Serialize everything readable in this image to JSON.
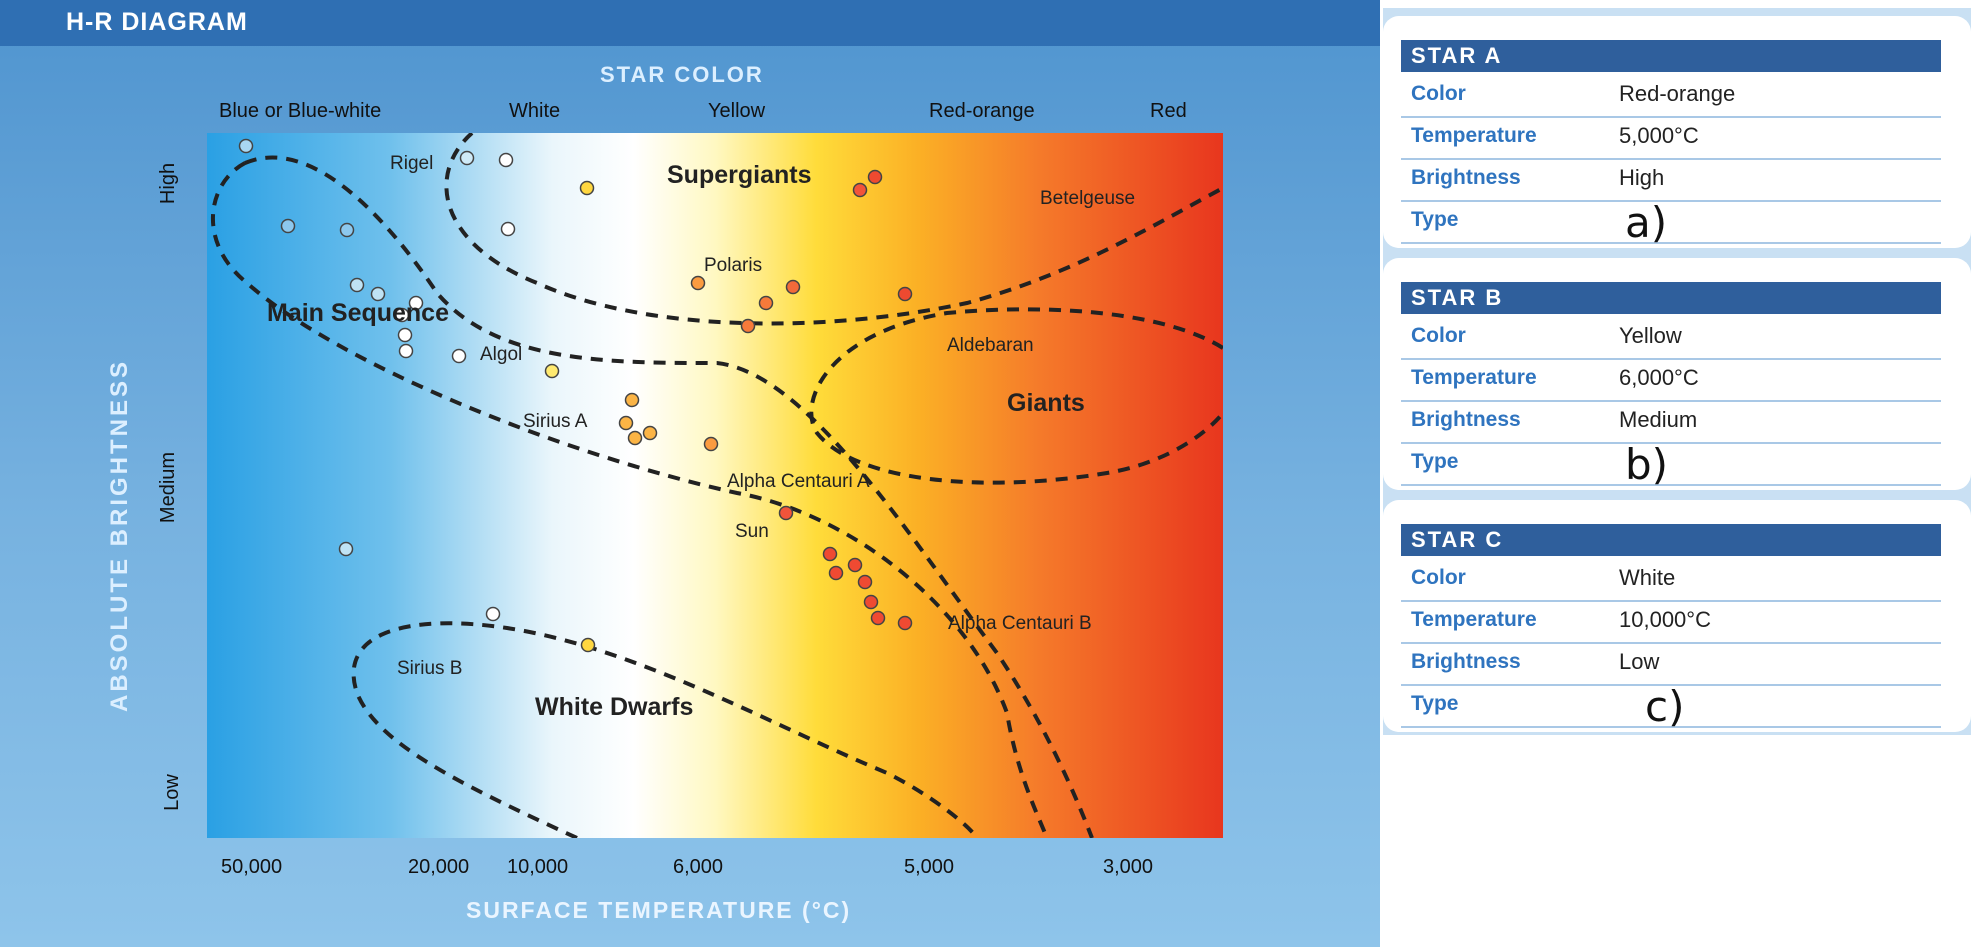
{
  "diagram": {
    "title": "H-R DIAGRAM",
    "star_color_heading": "STAR COLOR",
    "color_columns": [
      "Blue or Blue-white",
      "White",
      "Yellow",
      "Red-orange",
      "Red"
    ],
    "y_axis_title": "ABSOLUTE BRIGHTNESS",
    "y_ticks": [
      "High",
      "Medium",
      "Low"
    ],
    "x_axis_title": "SURFACE TEMPERATURE (°C)",
    "x_ticks": [
      "50,000",
      "20,000",
      "10,000",
      "6,000",
      "5,000",
      "3,000"
    ],
    "regions": {
      "supergiants": "Supergiants",
      "main_sequence": "Main Sequence",
      "giants": "Giants",
      "white_dwarfs": "White Dwarfs"
    },
    "star_names": {
      "rigel": "Rigel",
      "betelgeuse": "Betelgeuse",
      "polaris": "Polaris",
      "aldebaran": "Aldebaran",
      "algol": "Algol",
      "sirius_a": "Sirius A",
      "alpha_centauri_a": "Alpha Centauri A",
      "sun": "Sun",
      "alpha_centauri_b": "Alpha Centauri B",
      "sirius_b": "Sirius B"
    }
  },
  "cards": [
    {
      "title": "STAR A",
      "rows": [
        {
          "label": "Color",
          "value": "Red-orange"
        },
        {
          "label": "Temperature",
          "value": "5,000°C"
        },
        {
          "label": "Brightness",
          "value": "High"
        },
        {
          "label": "Type",
          "value": "a)"
        }
      ]
    },
    {
      "title": "STAR B",
      "rows": [
        {
          "label": "Color",
          "value": "Yellow"
        },
        {
          "label": "Temperature",
          "value": "6,000°C"
        },
        {
          "label": "Brightness",
          "value": "Medium"
        },
        {
          "label": "Type",
          "value": "b)"
        }
      ]
    },
    {
      "title": "STAR C",
      "rows": [
        {
          "label": "Color",
          "value": "White"
        },
        {
          "label": "Temperature",
          "value": "10,000°C"
        },
        {
          "label": "Brightness",
          "value": "Low"
        },
        {
          "label": "Type",
          "value": "c)"
        }
      ]
    }
  ],
  "colors": {
    "card_header": "#2f5f9c",
    "card_label": "#2f74bf",
    "panel_header": "#2f6fb3"
  }
}
